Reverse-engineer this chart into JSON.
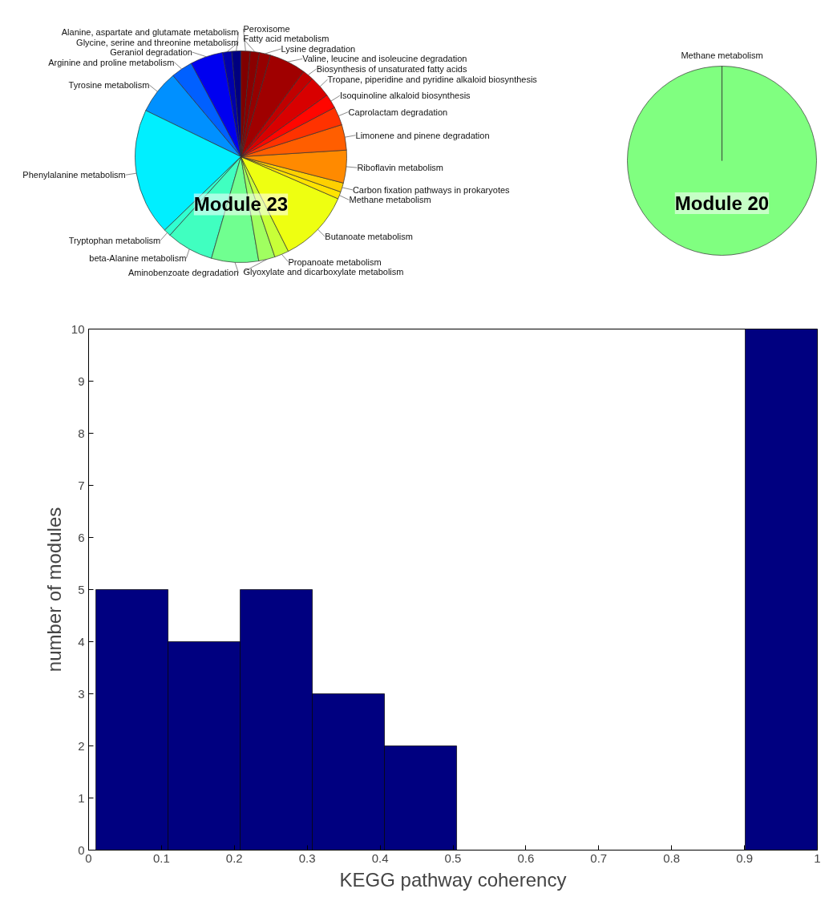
{
  "chart_data": [
    {
      "type": "pie",
      "title": "Module 23",
      "categories": [
        "Alanine, aspartate and glutamate metabolism",
        "Glycine, serine and threonine metabolism",
        "Geraniol degradation",
        "Arginine and proline metabolism",
        "Tyrosine metabolism",
        "Phenylalanine metabolism",
        "Tryptophan metabolism",
        "beta-Alanine metabolism",
        "Aminobenzoate degradation",
        "Glyoxylate and dicarboxylate metabolism",
        "Propanoate metabolism",
        "Butanoate metabolism",
        "Methane metabolism",
        "Carbon fixation pathways in prokaryotes",
        "Riboflavin metabolism",
        "Limonene and pinene degradation",
        "Caprolactam degradation",
        "Isoquinoline alkaloid biosynthesis",
        "Tropane, piperidine and pyridine alkaloid biosynthesis",
        "Biosynthesis of unsaturated fatty acids",
        "Valine, leucine and isoleucine degradation",
        "Lysine degradation",
        "Fatty acid metabolism",
        "Peroxisome"
      ],
      "values": [
        1.4,
        1.4,
        5,
        3.3,
        6.7,
        19.4,
        1.1,
        7.2,
        7.2,
        2.5,
        2.2,
        11.1,
        1.1,
        1.4,
        5,
        3.9,
        2.8,
        2.2,
        3.3,
        1.7,
        5.6,
        1.7,
        1.4,
        1.4
      ],
      "colors": [
        "#000080",
        "#0000ac",
        "#0000f0",
        "#0060ff",
        "#0090ff",
        "#00efff",
        "#30ffd0",
        "#40ffc0",
        "#70ff90",
        "#a0ff60",
        "#c8ff38",
        "#eeff11",
        "#ffe300",
        "#ffd000",
        "#ff8a00",
        "#ff5e00",
        "#ff3200",
        "#ff0600",
        "#d80000",
        "#c00000",
        "#a00000",
        "#960000",
        "#8a0000",
        "#800000"
      ]
    },
    {
      "type": "pie",
      "title": "Module 20",
      "categories": [
        "Methane metabolism"
      ],
      "values": [
        100
      ],
      "colors": [
        "#80ff80"
      ]
    },
    {
      "type": "histogram",
      "xlabel": "KEGG pathway coherency",
      "ylabel": "number of modules",
      "bins": [
        0.01,
        0.109,
        0.208,
        0.307,
        0.406,
        0.505,
        0.604,
        0.703,
        0.802,
        0.901,
        1.0
      ],
      "values": [
        5,
        4,
        5,
        3,
        2,
        0,
        0,
        0,
        0,
        10
      ],
      "color": "#000080",
      "xlim": [
        0,
        1
      ],
      "ylim": [
        0,
        10
      ],
      "xticks": [
        0,
        0.1,
        0.2,
        0.3,
        0.4,
        0.5,
        0.6,
        0.7,
        0.8,
        0.9,
        1
      ],
      "yticks": [
        0,
        1,
        2,
        3,
        4,
        5,
        6,
        7,
        8,
        9,
        10
      ],
      "grid": false
    }
  ]
}
